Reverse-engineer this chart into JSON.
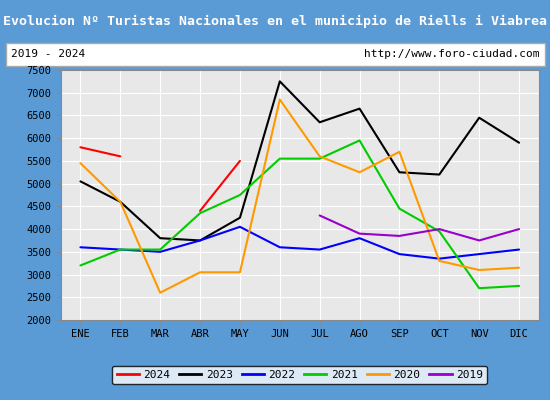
{
  "title": "Evolucion Nº Turistas Nacionales en el municipio de Riells i Viabrea",
  "subtitle_left": "2019 - 2024",
  "subtitle_right": "http://www.foro-ciudad.com",
  "months": [
    "ENE",
    "FEB",
    "MAR",
    "ABR",
    "MAY",
    "JUN",
    "JUL",
    "AGO",
    "SEP",
    "OCT",
    "NOV",
    "DIC"
  ],
  "ylim": [
    2000,
    7500
  ],
  "yticks": [
    2000,
    2500,
    3000,
    3500,
    4000,
    4500,
    5000,
    5500,
    6000,
    6500,
    7000,
    7500
  ],
  "series": {
    "2024": {
      "color": "#ff0000",
      "data": [
        5800,
        5600,
        null,
        4400,
        5500,
        null,
        null,
        null,
        null,
        null,
        null,
        null
      ]
    },
    "2023": {
      "color": "#000000",
      "data": [
        5050,
        4600,
        3800,
        3750,
        4250,
        7250,
        6350,
        6650,
        5250,
        5200,
        6450,
        5900
      ]
    },
    "2022": {
      "color": "#0000ff",
      "data": [
        3600,
        3550,
        3500,
        3750,
        4050,
        3600,
        3550,
        3800,
        3450,
        3350,
        3450,
        3550
      ]
    },
    "2021": {
      "color": "#00cc00",
      "data": [
        3200,
        3550,
        3550,
        4350,
        4750,
        5550,
        5550,
        5950,
        4450,
        3950,
        2700,
        2750
      ]
    },
    "2020": {
      "color": "#ff9900",
      "data": [
        5450,
        4600,
        2600,
        3050,
        3050,
        6850,
        5600,
        5250,
        5700,
        3300,
        3100,
        3150
      ]
    },
    "2019": {
      "color": "#9900cc",
      "data": [
        null,
        null,
        null,
        null,
        null,
        null,
        4300,
        3900,
        3850,
        4000,
        3750,
        4000
      ]
    }
  },
  "title_bg": "#5b9bd5",
  "title_color": "#ffffff",
  "subtitle_bg": "#ffffff",
  "subtitle_color": "#000000",
  "plot_bg": "#e8e8e8",
  "grid_color": "#ffffff",
  "border_color": "#5b9bd5",
  "fig_bg": "#5b9bd5"
}
